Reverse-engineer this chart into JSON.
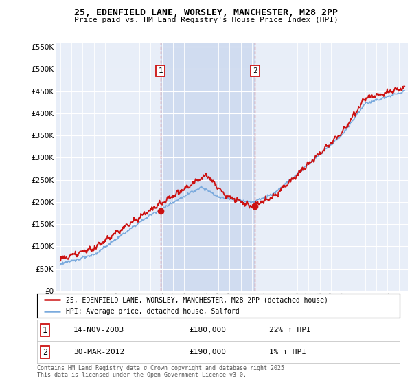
{
  "title_line1": "25, EDENFIELD LANE, WORSLEY, MANCHESTER, M28 2PP",
  "title_line2": "Price paid vs. HM Land Registry's House Price Index (HPI)",
  "legend_label1": "25, EDENFIELD LANE, WORSLEY, MANCHESTER, M28 2PP (detached house)",
  "legend_label2": "HPI: Average price, detached house, Salford",
  "sale1_date": "14-NOV-2003",
  "sale1_price": "£180,000",
  "sale1_hpi": "22% ↑ HPI",
  "sale2_date": "30-MAR-2012",
  "sale2_price": "£190,000",
  "sale2_hpi": "1% ↑ HPI",
  "footnote": "Contains HM Land Registry data © Crown copyright and database right 2025.\nThis data is licensed under the Open Government Licence v3.0.",
  "background_color": "#ffffff",
  "plot_bg_color": "#e8eef8",
  "shade_color": "#d0dcf0",
  "grid_color": "#ffffff",
  "hpi_line_color": "#7aaadd",
  "price_line_color": "#cc1111",
  "sale_marker_color": "#cc1111",
  "vline_color": "#cc1111",
  "ylim": [
    0,
    560000
  ],
  "yticks": [
    0,
    50000,
    100000,
    150000,
    200000,
    250000,
    300000,
    350000,
    400000,
    450000,
    500000,
    550000
  ],
  "sale1_x": 2003.88,
  "sale1_y": 180000,
  "sale2_x": 2012.25,
  "sale2_y": 190000,
  "xlim_left": 1994.6,
  "xlim_right": 2025.8
}
